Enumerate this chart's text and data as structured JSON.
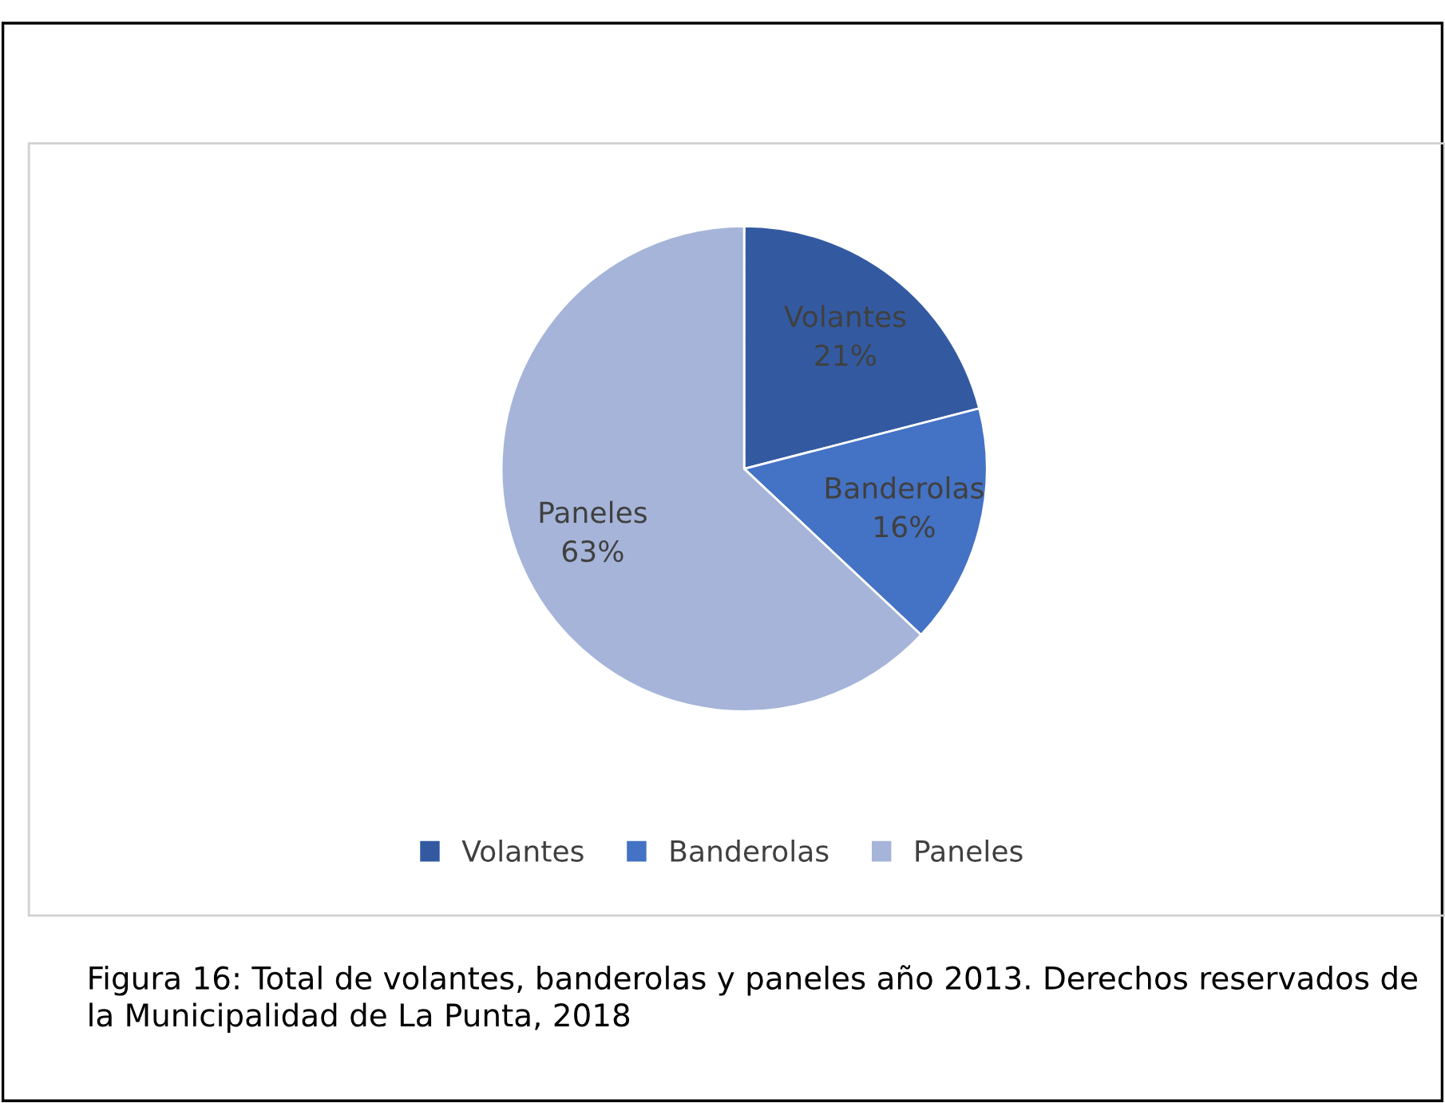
{
  "chart_data": {
    "type": "pie",
    "categories": [
      "Volantes",
      "Banderolas",
      "Paneles"
    ],
    "values": [
      21,
      16,
      63
    ],
    "value_labels": [
      "21%",
      "16%",
      "63%"
    ],
    "colors": [
      "#335aa1",
      "#4472c4",
      "#a5b4d8"
    ],
    "legend": "bottom",
    "annotations": [
      "Figura 16: Total de volantes, banderolas y paneles año 2013. Derechos reservados de la Municipalidad de La Punta, 2018"
    ]
  }
}
